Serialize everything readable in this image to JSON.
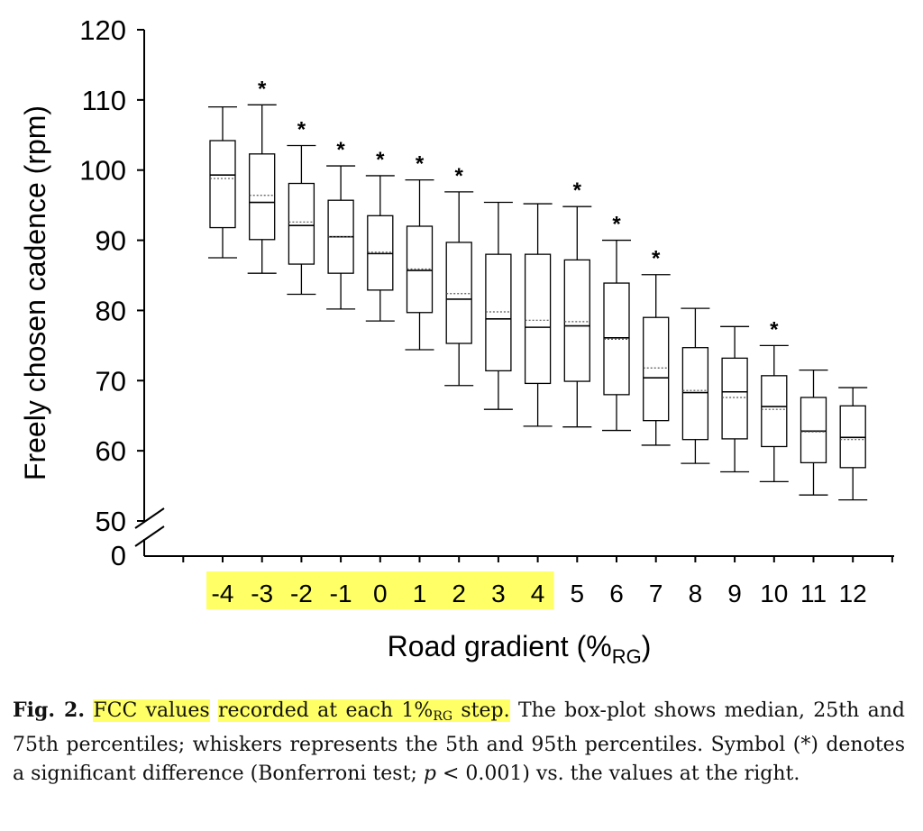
{
  "chart_data": {
    "type": "box",
    "ylabel": "Freely chosen cadence (rpm)",
    "xlabel_main": "Road gradient (%",
    "xlabel_sub": "RG",
    "xlabel_close": ")",
    "ylim": [
      50,
      120
    ],
    "y_ticks": [
      "120",
      "110",
      "100",
      "90",
      "80",
      "70",
      "60",
      "50"
    ],
    "y_break_label": "0",
    "significance_symbol": "*",
    "highlight_color": "#ffff66",
    "highlighted_categories": [
      "-4",
      "-3",
      "-2",
      "-1",
      "0",
      "1",
      "2",
      "3",
      "4"
    ],
    "categories": [
      "-4",
      "-3",
      "-2",
      "-1",
      "0",
      "1",
      "2",
      "3",
      "4",
      "5",
      "6",
      "7",
      "8",
      "9",
      "10",
      "11",
      "12"
    ],
    "boxes": [
      {
        "x": "-4",
        "p5": 87.5,
        "q1": 91.8,
        "median": 99.3,
        "mean": 98.8,
        "q3": 104.2,
        "p95": 109.0,
        "sig": false
      },
      {
        "x": "-3",
        "p5": 85.3,
        "q1": 90.1,
        "median": 95.4,
        "mean": 96.4,
        "q3": 102.3,
        "p95": 109.3,
        "sig": true
      },
      {
        "x": "-2",
        "p5": 82.3,
        "q1": 86.6,
        "median": 92.1,
        "mean": 92.6,
        "q3": 98.1,
        "p95": 103.5,
        "sig": true
      },
      {
        "x": "-1",
        "p5": 80.2,
        "q1": 85.3,
        "median": 90.5,
        "mean": 90.5,
        "q3": 95.7,
        "p95": 100.6,
        "sig": true
      },
      {
        "x": "0",
        "p5": 78.5,
        "q1": 82.9,
        "median": 88.1,
        "mean": 88.3,
        "q3": 93.5,
        "p95": 99.2,
        "sig": true
      },
      {
        "x": "1",
        "p5": 74.4,
        "q1": 79.7,
        "median": 85.7,
        "mean": 85.9,
        "q3": 92.0,
        "p95": 98.6,
        "sig": true
      },
      {
        "x": "2",
        "p5": 69.3,
        "q1": 75.3,
        "median": 81.6,
        "mean": 82.4,
        "q3": 89.7,
        "p95": 96.9,
        "sig": true
      },
      {
        "x": "3",
        "p5": 65.9,
        "q1": 71.4,
        "median": 78.8,
        "mean": 79.8,
        "q3": 88.0,
        "p95": 95.4,
        "sig": false
      },
      {
        "x": "4",
        "p5": 63.5,
        "q1": 69.6,
        "median": 77.6,
        "mean": 78.6,
        "q3": 88.0,
        "p95": 95.2,
        "sig": false
      },
      {
        "x": "5",
        "p5": 63.4,
        "q1": 69.9,
        "median": 77.8,
        "mean": 78.4,
        "q3": 87.2,
        "p95": 94.8,
        "sig": true
      },
      {
        "x": "6",
        "p5": 62.9,
        "q1": 68.0,
        "median": 76.1,
        "mean": 75.9,
        "q3": 83.9,
        "p95": 90.0,
        "sig": true
      },
      {
        "x": "7",
        "p5": 60.8,
        "q1": 64.3,
        "median": 70.4,
        "mean": 71.8,
        "q3": 79.0,
        "p95": 85.1,
        "sig": true
      },
      {
        "x": "8",
        "p5": 58.2,
        "q1": 61.6,
        "median": 68.3,
        "mean": 68.6,
        "q3": 74.7,
        "p95": 80.3,
        "sig": false
      },
      {
        "x": "9",
        "p5": 57.0,
        "q1": 61.7,
        "median": 68.4,
        "mean": 67.6,
        "q3": 73.2,
        "p95": 77.7,
        "sig": false
      },
      {
        "x": "10",
        "p5": 55.6,
        "q1": 60.6,
        "median": 66.3,
        "mean": 65.9,
        "q3": 70.7,
        "p95": 75.0,
        "sig": true
      },
      {
        "x": "11",
        "p5": 53.7,
        "q1": 58.3,
        "median": 62.8,
        "mean": 62.7,
        "q3": 67.6,
        "p95": 71.5,
        "sig": false
      },
      {
        "x": "12",
        "p5": 53.0,
        "q1": 57.6,
        "median": 61.9,
        "mean": 61.6,
        "q3": 66.4,
        "p95": 69.0,
        "sig": false
      }
    ]
  },
  "caption": {
    "fig_label": "Fig. 2.",
    "hl1": "FCC values",
    "gap1": " ",
    "hl2_pre": "recorded at each 1%",
    "hl2_sub": "RG",
    "hl2_post": " step.",
    "rest_a": " The box-plot shows median, 25th and 75th percentiles; whiskers represents the 5th and 95th percentiles. Symbol (*) denotes a significant difference (Bonferroni test; ",
    "p_symbol": "p",
    "rest_b": " < 0.001) vs. the values at the right."
  }
}
